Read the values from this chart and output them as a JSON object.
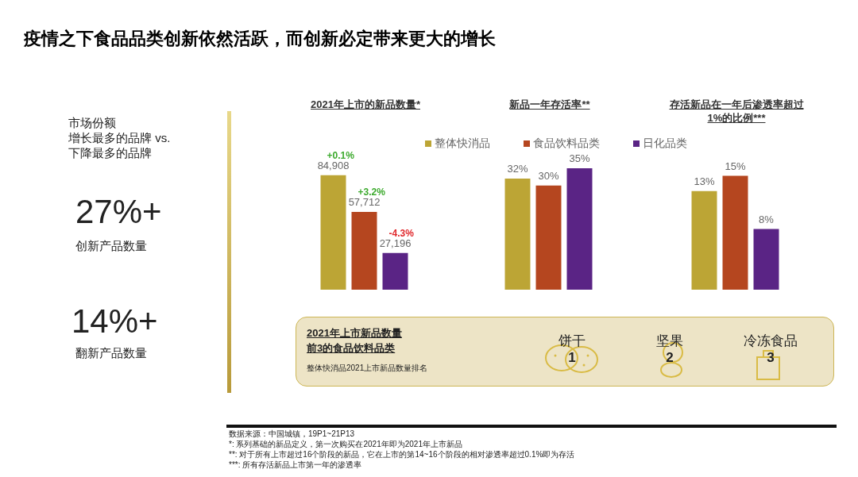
{
  "chart_data": [
    {
      "type": "other",
      "title": "疫情之下食品品类创新依然活跃，而创新必定带来更大的增长",
      "annotations": [
        "市场份额",
        "增长最多的品牌 vs.",
        "下降最多的品牌",
        "27%+",
        "创新产品数量",
        "14%+",
        "翻新产品数量",
        "2021年上市新品数量",
        "前3的食品饮料品类",
        "整体快消品2021上市新品数量排名",
        "饼干",
        "1",
        "坚果",
        "2",
        "冷冻食品",
        "3",
        "数据来源：中国城镇，19P1~21P13",
        "*: 系列基础的新品定义，第一次购买在2021年即为2021年上市新品",
        "**: 对于所有上市超过16个阶段的新品，它在上市的第14~16个阶段的相对渗透率超过0.1%即为存活",
        "***: 所有存活新品上市第一年的渗透率"
      ]
    },
    {
      "type": "bar",
      "title": "2021年上市的新品数量*",
      "categories": [
        null
      ],
      "tick_labels": false,
      "legend": false,
      "annotations": [
        "+0.1%",
        "+3.2%",
        "-4.3%"
      ],
      "series": [
        {
          "color": "#bca535",
          "values": [
            84908
          ],
          "value_labels": [
            "84,908"
          ]
        },
        {
          "color": "#b5461f",
          "values": [
            57712
          ],
          "value_labels": [
            "57,712"
          ]
        },
        {
          "color": "#5a2485",
          "values": [
            27196
          ],
          "value_labels": [
            "27,196"
          ]
        }
      ]
    },
    {
      "type": "bar",
      "title": "新品一年存活率**",
      "categories": [
        null
      ],
      "tick_labels": false,
      "legend": "top",
      "series": [
        {
          "name": "整体快消品",
          "color": "#bca535",
          "values": [
            32
          ],
          "value_labels": [
            "32%"
          ]
        },
        {
          "name": "食品饮料品类",
          "color": "#b5461f",
          "values": [
            30
          ],
          "value_labels": [
            "30%"
          ]
        },
        {
          "name": "日化品类",
          "color": "#5a2485",
          "values": [
            35
          ],
          "value_labels": [
            "35%"
          ]
        }
      ]
    },
    {
      "type": "bar",
      "title": "存活新品在一年后渗透率超过\n1%的比例***",
      "categories": [
        null
      ],
      "tick_labels": false,
      "legend": false,
      "series": [
        {
          "color": "#bca535",
          "values": [
            13
          ],
          "value_labels": [
            "13%"
          ]
        },
        {
          "color": "#b5461f",
          "values": [
            15
          ],
          "value_labels": [
            "15%"
          ]
        },
        {
          "color": "#5a2485",
          "values": [
            8
          ],
          "value_labels": [
            "8%"
          ]
        }
      ]
    }
  ]
}
